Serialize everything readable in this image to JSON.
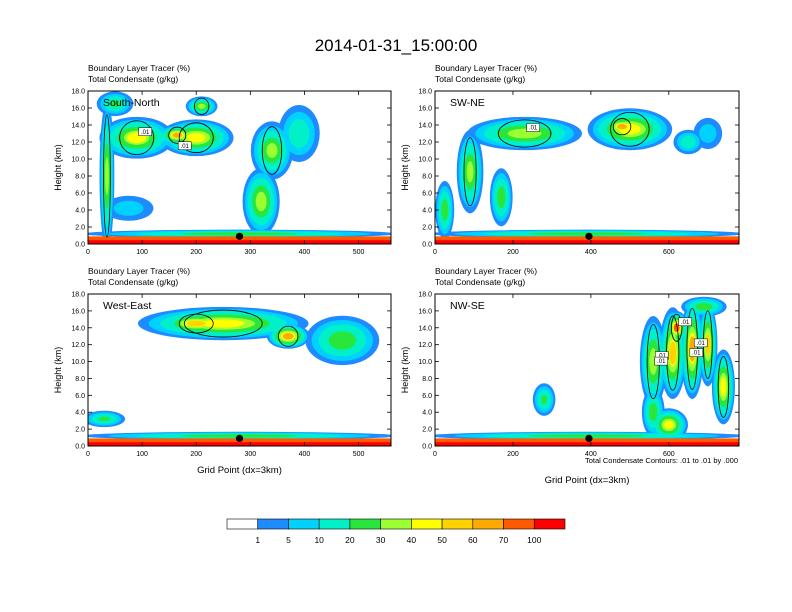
{
  "figure_title": "2014-01-31_15:00:00",
  "colorbar": {
    "labels": [
      "1",
      "5",
      "10",
      "20",
      "30",
      "40",
      "50",
      "60",
      "70",
      "100"
    ],
    "colors": [
      "#ffffff",
      "#1e8cff",
      "#00d2ff",
      "#00f0c8",
      "#28e63c",
      "#9bff32",
      "#ffff00",
      "#ffd200",
      "#ffaa00",
      "#ff5a00",
      "#ff0000"
    ]
  },
  "footnote": "Total Condensate Contours: .01 to .01 by .000",
  "chart_data": [
    {
      "type": "heatmap",
      "panel_label": "South-North",
      "title_line1": "Boundary Layer Tracer   (%)",
      "title_line2": "Total Condensate   (g/kg)",
      "ylabel": "Height (km)",
      "xlabel": "",
      "xlim": [
        0,
        560
      ],
      "ylim": [
        0,
        18
      ],
      "xticks": [
        "0",
        "100",
        "200",
        "300",
        "400",
        "500"
      ],
      "xtick_values": [
        0,
        100,
        200,
        300,
        400,
        500
      ],
      "yticks": [
        "0.0",
        "2.0",
        "4.0",
        "6.0",
        "8.0",
        "10.0",
        "12.0",
        "14.0",
        "16.0",
        "18.0"
      ],
      "contour_labels": [
        ".01",
        ".01"
      ],
      "marker_x": 280,
      "blobs": [
        {
          "x": 90,
          "y": 12.5,
          "rx": 70,
          "ry": 2.5,
          "v": 40
        },
        {
          "x": 200,
          "y": 12.5,
          "rx": 70,
          "ry": 2.2,
          "v": 45
        },
        {
          "x": 165,
          "y": 12.8,
          "rx": 35,
          "ry": 1.2,
          "v": 65
        },
        {
          "x": 35,
          "y": 8.0,
          "rx": 14,
          "ry": 9.0,
          "v": 30
        },
        {
          "x": 50,
          "y": 16.5,
          "rx": 35,
          "ry": 1.5,
          "v": 20
        },
        {
          "x": 210,
          "y": 16.2,
          "rx": 30,
          "ry": 1.2,
          "v": 30
        },
        {
          "x": 320,
          "y": 5.0,
          "rx": 35,
          "ry": 4.0,
          "v": 35
        },
        {
          "x": 340,
          "y": 11.0,
          "rx": 40,
          "ry": 3.5,
          "v": 30
        },
        {
          "x": 390,
          "y": 13.0,
          "rx": 40,
          "ry": 3.5,
          "v": 15
        },
        {
          "x": 75,
          "y": 4.2,
          "rx": 50,
          "ry": 1.6,
          "v": 8
        },
        {
          "x": 280,
          "y": 0.5,
          "rx": 300,
          "ry": 0.6,
          "v": 80
        },
        {
          "x": 280,
          "y": 1.2,
          "rx": 300,
          "ry": 0.5,
          "v": 25
        }
      ]
    },
    {
      "type": "heatmap",
      "panel_label": "SW-NE",
      "title_line1": "Boundary Layer Tracer   (%)",
      "title_line2": "Total Condensate   (g/kg)",
      "ylabel": "Height (km)",
      "xlabel": "",
      "xlim": [
        0,
        780
      ],
      "ylim": [
        0,
        18
      ],
      "xticks": [
        "0",
        "200",
        "400",
        "600"
      ],
      "xtick_values": [
        0,
        200,
        400,
        600
      ],
      "yticks": [
        "0.0",
        "2.0",
        "4.0",
        "6.0",
        "8.0",
        "10.0",
        "12.0",
        "14.0",
        "16.0",
        "18.0"
      ],
      "contour_labels": [
        ".01"
      ],
      "marker_x": 395,
      "blobs": [
        {
          "x": 230,
          "y": 13.0,
          "rx": 150,
          "ry": 2.0,
          "v": 35
        },
        {
          "x": 500,
          "y": 13.5,
          "rx": 110,
          "ry": 2.5,
          "v": 45
        },
        {
          "x": 480,
          "y": 13.8,
          "rx": 50,
          "ry": 1.2,
          "v": 65
        },
        {
          "x": 90,
          "y": 8.5,
          "rx": 35,
          "ry": 5.0,
          "v": 30
        },
        {
          "x": 170,
          "y": 5.5,
          "rx": 30,
          "ry": 3.5,
          "v": 25
        },
        {
          "x": 25,
          "y": 4.0,
          "rx": 25,
          "ry": 3.5,
          "v": 25
        },
        {
          "x": 650,
          "y": 12.0,
          "rx": 40,
          "ry": 1.5,
          "v": 15
        },
        {
          "x": 700,
          "y": 13.0,
          "rx": 40,
          "ry": 2.0,
          "v": 8
        },
        {
          "x": 390,
          "y": 0.5,
          "rx": 420,
          "ry": 0.6,
          "v": 80
        },
        {
          "x": 390,
          "y": 1.2,
          "rx": 420,
          "ry": 0.5,
          "v": 25
        }
      ]
    },
    {
      "type": "heatmap",
      "panel_label": "West-East",
      "title_line1": "Boundary Layer Tracer   (%)",
      "title_line2": "Total Condensate   (g/kg)",
      "ylabel": "Height (km)",
      "xlabel": "Grid Point (dx=3km)",
      "xlim": [
        0,
        560
      ],
      "ylim": [
        0,
        18
      ],
      "xticks": [
        "0",
        "100",
        "200",
        "300",
        "400",
        "500"
      ],
      "xtick_values": [
        0,
        100,
        200,
        300,
        400,
        500
      ],
      "yticks": [
        "0.0",
        "2.0",
        "4.0",
        "6.0",
        "8.0",
        "10.0",
        "12.0",
        "14.0",
        "16.0",
        "18.0"
      ],
      "contour_labels": [],
      "marker_x": 280,
      "blobs": [
        {
          "x": 250,
          "y": 14.5,
          "rx": 160,
          "ry": 2.0,
          "v": 45
        },
        {
          "x": 200,
          "y": 14.5,
          "rx": 70,
          "ry": 1.4,
          "v": 55
        },
        {
          "x": 370,
          "y": 13.0,
          "rx": 40,
          "ry": 1.5,
          "v": 65
        },
        {
          "x": 470,
          "y": 12.5,
          "rx": 70,
          "ry": 3.0,
          "v": 25
        },
        {
          "x": 30,
          "y": 3.2,
          "rx": 40,
          "ry": 1.0,
          "v": 20
        },
        {
          "x": 280,
          "y": 0.5,
          "rx": 300,
          "ry": 0.6,
          "v": 80
        },
        {
          "x": 280,
          "y": 1.2,
          "rx": 300,
          "ry": 0.5,
          "v": 25
        }
      ]
    },
    {
      "type": "heatmap",
      "panel_label": "NW-SE",
      "title_line1": "Boundary Layer Tracer   (%)",
      "title_line2": "Total Condensate   (g/kg)",
      "ylabel": "Height (km)",
      "xlabel": "Grid Point (dx=3km)",
      "xlim": [
        0,
        780
      ],
      "ylim": [
        0,
        18
      ],
      "xticks": [
        "0",
        "200",
        "400",
        "600"
      ],
      "xtick_values": [
        0,
        200,
        400,
        600
      ],
      "yticks": [
        "0.0",
        "2.0",
        "4.0",
        "6.0",
        "8.0",
        "10.0",
        "12.0",
        "14.0",
        "16.0",
        "18.0"
      ],
      "contour_labels": [
        ".01",
        ".01",
        ".01",
        ".01",
        ".01"
      ],
      "marker_x": 395,
      "blobs": [
        {
          "x": 560,
          "y": 10.0,
          "rx": 35,
          "ry": 5.5,
          "v": 35
        },
        {
          "x": 610,
          "y": 11.0,
          "rx": 35,
          "ry": 5.5,
          "v": 55
        },
        {
          "x": 660,
          "y": 11.5,
          "rx": 30,
          "ry": 6.0,
          "v": 60
        },
        {
          "x": 700,
          "y": 12.0,
          "rx": 25,
          "ry": 5.0,
          "v": 50
        },
        {
          "x": 620,
          "y": 14.0,
          "rx": 30,
          "ry": 2.0,
          "v": 70
        },
        {
          "x": 690,
          "y": 16.5,
          "rx": 60,
          "ry": 1.2,
          "v": 25
        },
        {
          "x": 740,
          "y": 7.0,
          "rx": 30,
          "ry": 4.5,
          "v": 45
        },
        {
          "x": 560,
          "y": 4.0,
          "rx": 30,
          "ry": 3.0,
          "v": 25
        },
        {
          "x": 280,
          "y": 5.5,
          "rx": 30,
          "ry": 2.0,
          "v": 20
        },
        {
          "x": 600,
          "y": 2.5,
          "rx": 50,
          "ry": 2.0,
          "v": 45
        },
        {
          "x": 390,
          "y": 0.5,
          "rx": 420,
          "ry": 0.6,
          "v": 80
        },
        {
          "x": 390,
          "y": 1.2,
          "rx": 420,
          "ry": 0.5,
          "v": 25
        }
      ]
    }
  ]
}
